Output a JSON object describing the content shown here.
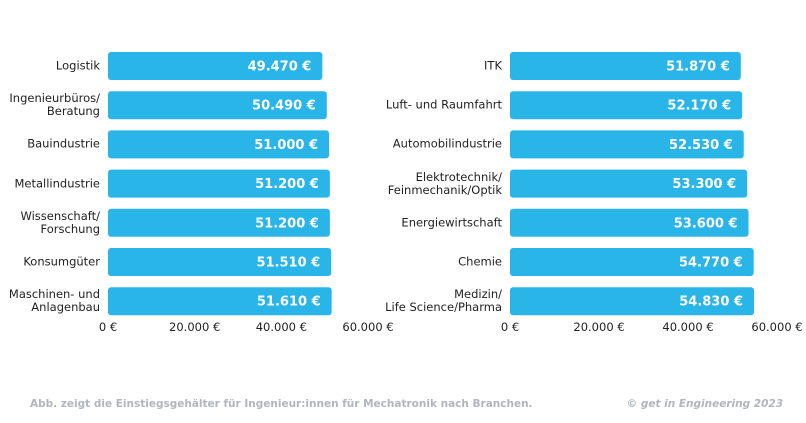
{
  "chart_data": [
    {
      "type": "bar",
      "orientation": "horizontal",
      "color": "#29b5e8",
      "categories": [
        "Logistik",
        "Ingenieurbüros/\nBeratung",
        "Bauindustrie",
        "Metallindustrie",
        "Wissenschaft/\nForschung",
        "Konsumgüter",
        "Maschinen- und\nAnlagenbau"
      ],
      "values": [
        49470,
        50490,
        51000,
        51200,
        51200,
        51510,
        51610
      ],
      "value_labels": [
        "49.470 €",
        "50.490 €",
        "51.000 €",
        "51.200 €",
        "51.200 €",
        "51.510 €",
        "51.610 €"
      ],
      "xlim": [
        0,
        60000
      ],
      "xticks": [
        {
          "value": 0,
          "label": "0 €"
        },
        {
          "value": 20000,
          "label": "20.000 €"
        },
        {
          "value": 40000,
          "label": "40.000 €"
        },
        {
          "value": 60000,
          "label": "60.000 €"
        }
      ],
      "grid": false
    },
    {
      "type": "bar",
      "orientation": "horizontal",
      "color": "#29b5e8",
      "categories": [
        "ITK",
        "Luft- und Raumfahrt",
        "Automobilindustrie",
        "Elektrotechnik/\nFeinmechanik/Optik",
        "Energiewirtschaft",
        "Chemie",
        "Medizin/\nLife Science/Pharma"
      ],
      "values": [
        51870,
        52170,
        52530,
        53300,
        53600,
        54770,
        54830
      ],
      "value_labels": [
        "51.870 €",
        "52.170 €",
        "52.530 €",
        "53.300 €",
        "53.600 €",
        "54.770 €",
        "54.830 €"
      ],
      "xlim": [
        0,
        60000
      ],
      "xticks": [
        {
          "value": 0,
          "label": "0 €"
        },
        {
          "value": 20000,
          "label": "20.000 €"
        },
        {
          "value": 40000,
          "label": "40.000 €"
        },
        {
          "value": 60000,
          "label": "60.000 €"
        }
      ],
      "grid": false
    }
  ],
  "caption": "Abb. zeigt die Einstiegsgehälter für Ingenieur:innen für Mechatronik nach Branchen.",
  "source": "© get in Engineering 2023"
}
